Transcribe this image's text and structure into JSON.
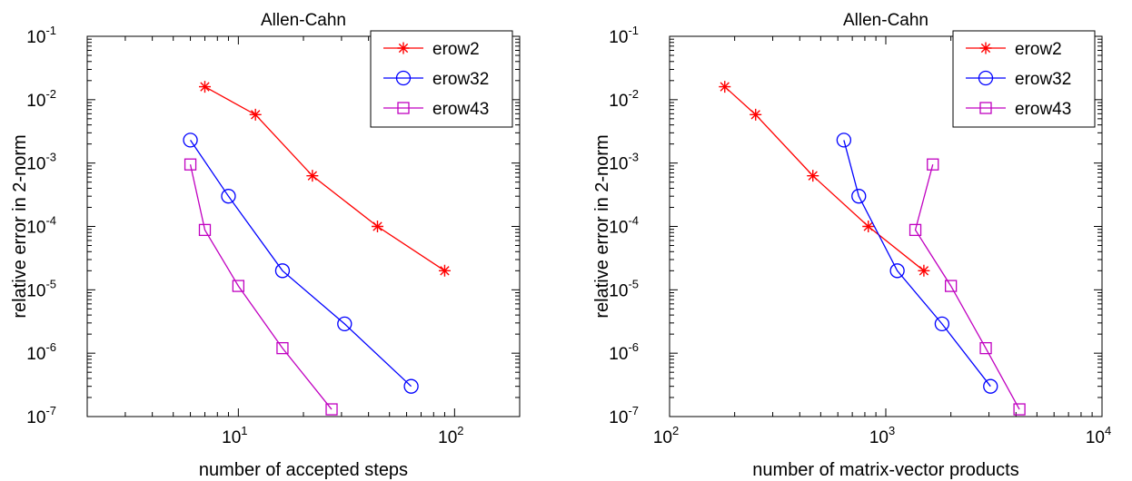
{
  "chart_data": [
    {
      "type": "line",
      "title": "Allen-Cahn",
      "xlabel": "number of accepted steps",
      "ylabel": "relative error in 2-norm",
      "xscale": "log",
      "yscale": "log",
      "xlim": [
        2,
        200
      ],
      "ylim": [
        1e-07,
        0.1
      ],
      "x_ticks": [
        {
          "base": "10",
          "exp": "1",
          "value": 10
        },
        {
          "base": "10",
          "exp": "2",
          "value": 100
        }
      ],
      "y_ticks": [
        {
          "base": "10",
          "exp": "-7",
          "value": 1e-07
        },
        {
          "base": "10",
          "exp": "-6",
          "value": 1e-06
        },
        {
          "base": "10",
          "exp": "-5",
          "value": 1e-05
        },
        {
          "base": "10",
          "exp": "-4",
          "value": 0.0001
        },
        {
          "base": "10",
          "exp": "-3",
          "value": 0.001
        },
        {
          "base": "10",
          "exp": "-2",
          "value": 0.01
        },
        {
          "base": "10",
          "exp": "-1",
          "value": 0.1
        }
      ],
      "grid": false,
      "legend_position": "top-right",
      "series": [
        {
          "name": "erow2",
          "color": "#ff0000",
          "marker": "star",
          "x": [
            7,
            12,
            22,
            44,
            90
          ],
          "y": [
            0.016,
            0.0058,
            0.00063,
            0.0001,
            2e-05
          ]
        },
        {
          "name": "erow32",
          "color": "#0000ff",
          "marker": "circle",
          "x": [
            6,
            9,
            16,
            31,
            63
          ],
          "y": [
            0.0023,
            0.0003,
            2e-05,
            2.9e-06,
            3e-07
          ]
        },
        {
          "name": "erow43",
          "color": "#c000c0",
          "marker": "square",
          "x": [
            6,
            7,
            10,
            16,
            27
          ],
          "y": [
            0.00095,
            8.8e-05,
            1.15e-05,
            1.2e-06,
            1.3e-07
          ]
        }
      ]
    },
    {
      "type": "line",
      "title": "Allen-Cahn",
      "xlabel": "number of matrix-vector products",
      "ylabel": "relative error in 2-norm",
      "xscale": "log",
      "yscale": "log",
      "xlim": [
        100,
        10000
      ],
      "ylim": [
        1e-07,
        0.1
      ],
      "x_ticks": [
        {
          "base": "10",
          "exp": "2",
          "value": 100
        },
        {
          "base": "10",
          "exp": "3",
          "value": 1000
        },
        {
          "base": "10",
          "exp": "4",
          "value": 10000
        }
      ],
      "y_ticks": [
        {
          "base": "10",
          "exp": "-7",
          "value": 1e-07
        },
        {
          "base": "10",
          "exp": "-6",
          "value": 1e-06
        },
        {
          "base": "10",
          "exp": "-5",
          "value": 1e-05
        },
        {
          "base": "10",
          "exp": "-4",
          "value": 0.0001
        },
        {
          "base": "10",
          "exp": "-3",
          "value": 0.001
        },
        {
          "base": "10",
          "exp": "-2",
          "value": 0.01
        },
        {
          "base": "10",
          "exp": "-1",
          "value": 0.1
        }
      ],
      "grid": false,
      "legend_position": "top-right",
      "series": [
        {
          "name": "erow2",
          "color": "#ff0000",
          "marker": "star",
          "x": [
            180,
            250,
            460,
            830,
            1500
          ],
          "y": [
            0.016,
            0.0058,
            0.00063,
            0.0001,
            2e-05
          ]
        },
        {
          "name": "erow32",
          "color": "#0000ff",
          "marker": "circle",
          "x": [
            640,
            750,
            1130,
            1820,
            3050
          ],
          "y": [
            0.0023,
            0.0003,
            2e-05,
            2.9e-06,
            3e-07
          ]
        },
        {
          "name": "erow43",
          "color": "#c000c0",
          "marker": "square",
          "x": [
            1650,
            1370,
            2000,
            2900,
            4150
          ],
          "y": [
            0.00095,
            8.8e-05,
            1.15e-05,
            1.2e-06,
            1.3e-07
          ]
        }
      ]
    }
  ]
}
